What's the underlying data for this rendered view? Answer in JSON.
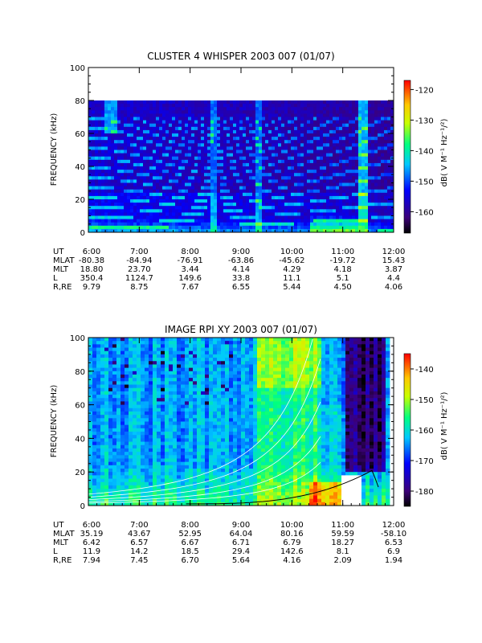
{
  "chart_data": [
    {
      "type": "heatmap",
      "title": "CLUSTER 4 WHISPER 2003 007 (01/07)",
      "ylabel": "FREQUENCY (kHz)",
      "colorbar_label": "dB( V M⁻¹ Hz⁻¹/²)",
      "ylim": [
        0,
        100
      ],
      "data_ylim": [
        0,
        80
      ],
      "yticks": [
        "0",
        "20",
        "40",
        "60",
        "80",
        "100"
      ],
      "x": [
        "6:00",
        "7:00",
        "8:00",
        "9:00",
        "10:00",
        "11:00",
        "12:00"
      ],
      "colorbar": {
        "range": [
          -167,
          -117
        ],
        "ticks": [
          "-120",
          "-130",
          "-140",
          "-150",
          "-160"
        ]
      },
      "ephemeris": [
        {
          "label": "UT",
          "values": [
            "6:00",
            "7:00",
            "8:00",
            "9:00",
            "10:00",
            "11:00",
            "12:00"
          ]
        },
        {
          "label": "MLAT",
          "values": [
            "-80.38",
            "-84.94",
            "-76.91",
            "-63.86",
            "-45.62",
            "-19.72",
            "15.43"
          ]
        },
        {
          "label": "MLT",
          "values": [
            "18.80",
            "23.70",
            "3.44",
            "4.14",
            "4.29",
            "4.18",
            "3.87"
          ]
        },
        {
          "label": "L",
          "values": [
            "350.4",
            "1124.7",
            "149.6",
            "33.8",
            "11.1",
            "5.1",
            "4.4"
          ]
        },
        {
          "label": "R,RE",
          "values": [
            "9.79",
            "8.75",
            "7.67",
            "6.55",
            "5.44",
            "4.50",
            "4.06"
          ]
        }
      ]
    },
    {
      "type": "heatmap",
      "title": "IMAGE RPI XY 2003 007 (01/07)",
      "ylabel": "FREQUENCY (kHz)",
      "colorbar_label": "dB( V M⁻¹ Hz⁻¹/²)",
      "ylim": [
        0,
        100
      ],
      "yticks": [
        "0",
        "20",
        "40",
        "60",
        "80",
        "100"
      ],
      "x": [
        "6:00",
        "7:00",
        "8:00",
        "9:00",
        "10:00",
        "11:00",
        "12:00"
      ],
      "colorbar": {
        "range": [
          -185,
          -135
        ],
        "ticks": [
          "-140",
          "-150",
          "-160",
          "-170",
          "-180"
        ]
      },
      "ephemeris": [
        {
          "label": "UT",
          "values": [
            "6:00",
            "7:00",
            "8:00",
            "9:00",
            "10:00",
            "11:00",
            "12:00"
          ]
        },
        {
          "label": "MLAT",
          "values": [
            "35.19",
            "43.67",
            "52.95",
            "64.04",
            "80.16",
            "59.59",
            "-58.10"
          ]
        },
        {
          "label": "MLT",
          "values": [
            "6.42",
            "6.57",
            "6.67",
            "6.71",
            "6.79",
            "18.27",
            "6.53"
          ]
        },
        {
          "label": "L",
          "values": [
            "11.9",
            "14.2",
            "18.5",
            "29.4",
            "142.6",
            "8.1",
            "6.9"
          ]
        },
        {
          "label": "R,RE",
          "values": [
            "7.94",
            "7.45",
            "6.70",
            "5.64",
            "4.16",
            "2.09",
            "1.94"
          ]
        }
      ]
    }
  ]
}
